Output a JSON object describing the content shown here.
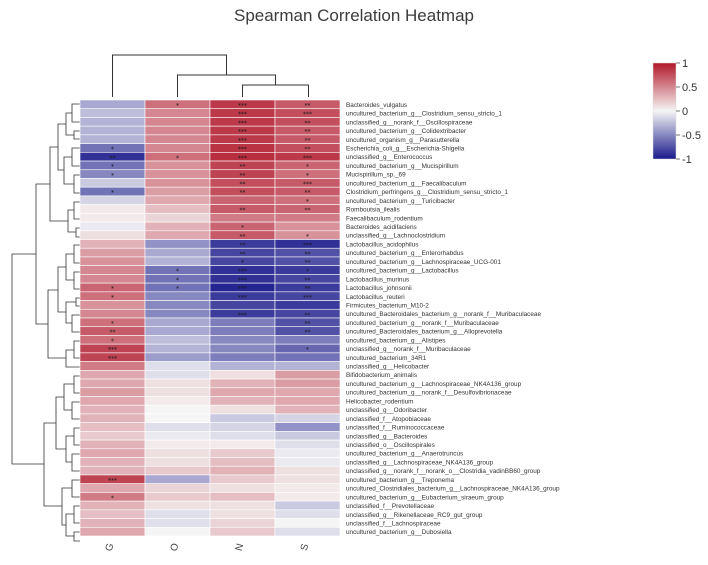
{
  "chart_data": {
    "type": "heatmap",
    "title": "Spearman Correlation Heatmap",
    "columns": [
      "G",
      "O",
      "N",
      "S"
    ],
    "rows": [
      "Bacteroides_vulgatus",
      "uncultured_bacterium_g__Clostridium_sensu_stricto_1",
      "unclassified_g__norank_f__Oscillospiraceae",
      "uncultured_bacterium_g__Colidextribacter",
      "uncultured_organism_g__Parasutterella",
      "Escherichia_coli_g__Escherichia-Shigella",
      "unclassified_g__Enterococcus",
      "uncultured_bacterium_g__Mucispirillum",
      "Mucispirillum_sp._69",
      "uncultured_bacterium_g__Faecalibaculum",
      "Clostridium_perfringens_g__Clostridium_sensu_stricto_1",
      "uncultured_bacterium_g__Turicibacter",
      "Romboutsia_ilealis",
      "Faecalibaculum_rodentium",
      "Bacteroides_acidifaciens",
      "unclassified_g__Lachnoclostridium",
      "Lactobacillus_acidophilus",
      "uncultured_bacterium_g__Enterorhabdus",
      "uncultured_bacterium_g__Lachnospiraceae_UCG-001",
      "uncultured_bacterium_g__Lactobacillus",
      "Lactobacillus_murinus",
      "Lactobacillus_johnsonii",
      "Lactobacillus_reuteri",
      "Firmicutes_bacterium_M10-2",
      "uncultured_Bacteroidales_bacterium_g__norank_f__Muribaculaceae",
      "uncultured_bacterium_g__norank_f__Muribaculaceae",
      "uncultured_Bacteroidales_bacterium_g__Alloprevotella",
      "uncultured_bacterium_g__Alistipes",
      "unclassified_g__norank_f__Muribaculaceae",
      "uncultured_bacterium_34R1",
      "unclassified_g__Helicobacter",
      "Bifidobacterium_animalis",
      "uncultured_bacterium_g__Lachnospiraceae_NK4A136_group",
      "uncultured_bacterium_g__norank_f__Desulfovibrionaceae",
      "Helicobacter_rodentium",
      "unclassified_g__Odoribacter",
      "unclassified_f__Atopobiaceae",
      "unclassified_f__Ruminococcaceae",
      "unclassified_g__Bacteroides",
      "unclassified_o__Oscillospirales",
      "uncultured_bacterium_g__Anaerotruncus",
      "unclassified_g__Lachnospiraceae_NK4A136_group",
      "unclassified_g__norank_f__norank_o__Clostridia_vadinBB60_group",
      "uncultured_bacterium_g__Treponema",
      "uncultured_Clostridiales_bacterium_g__Lachnospiraceae_NK4A136_group",
      "uncultured_bacterium_g__Eubacterium_siraeum_group",
      "unclassified_f__Prevotellaceae",
      "unclassified_g__Rikenellaceae_RC9_gut_group",
      "unclassified_f__Lachnospiraceae",
      "uncultured_bacterium_g__Dubosiella"
    ],
    "values": [
      [
        -0.35,
        0.6,
        0.85,
        0.7
      ],
      [
        -0.25,
        0.5,
        0.85,
        0.75
      ],
      [
        -0.3,
        0.5,
        0.85,
        0.75
      ],
      [
        -0.3,
        0.5,
        0.85,
        0.7
      ],
      [
        -0.3,
        0.5,
        0.85,
        0.7
      ],
      [
        -0.6,
        0.5,
        0.88,
        0.75
      ],
      [
        -0.9,
        0.6,
        0.9,
        0.85
      ],
      [
        -0.6,
        0.45,
        0.8,
        0.65
      ],
      [
        -0.5,
        0.45,
        0.8,
        0.6
      ],
      [
        -0.2,
        0.45,
        0.75,
        0.7
      ],
      [
        -0.6,
        0.4,
        0.75,
        0.7
      ],
      [
        -0.15,
        0.35,
        0.65,
        0.6
      ],
      [
        0.05,
        0.25,
        0.7,
        0.65
      ],
      [
        0.05,
        0.15,
        0.55,
        0.55
      ],
      [
        -0.05,
        0.3,
        0.65,
        0.45
      ],
      [
        0.1,
        0.35,
        0.7,
        0.45
      ],
      [
        0.3,
        -0.45,
        -0.85,
        -0.9
      ],
      [
        0.4,
        -0.35,
        -0.8,
        -0.75
      ],
      [
        0.45,
        -0.3,
        -0.8,
        -0.75
      ],
      [
        0.5,
        -0.6,
        -0.9,
        -0.85
      ],
      [
        0.5,
        -0.6,
        -0.9,
        -0.8
      ],
      [
        0.65,
        -0.6,
        -0.95,
        -0.85
      ],
      [
        0.6,
        -0.5,
        -0.85,
        -0.8
      ],
      [
        0.45,
        -0.5,
        -0.8,
        -0.85
      ],
      [
        0.5,
        -0.5,
        -0.85,
        -0.8
      ],
      [
        0.6,
        -0.35,
        -0.55,
        -0.75
      ],
      [
        0.7,
        -0.35,
        -0.55,
        -0.75
      ],
      [
        0.6,
        -0.25,
        -0.5,
        -0.55
      ],
      [
        0.8,
        -0.3,
        -0.5,
        -0.65
      ],
      [
        0.8,
        -0.4,
        -0.55,
        -0.6
      ],
      [
        0.55,
        -0.1,
        -0.3,
        -0.3
      ],
      [
        0.35,
        -0.1,
        0.1,
        0.4
      ],
      [
        0.35,
        0.1,
        0.3,
        0.4
      ],
      [
        0.4,
        0.1,
        0.35,
        0.35
      ],
      [
        0.35,
        0.05,
        0.3,
        0.35
      ],
      [
        0.3,
        0.0,
        0.1,
        0.3
      ],
      [
        0.3,
        0.0,
        -0.2,
        -0.15
      ],
      [
        0.25,
        -0.1,
        -0.15,
        -0.45
      ],
      [
        0.2,
        -0.05,
        -0.1,
        -0.2
      ],
      [
        0.3,
        0.05,
        0.05,
        -0.1
      ],
      [
        0.35,
        0.1,
        0.2,
        -0.05
      ],
      [
        0.3,
        0.1,
        0.25,
        -0.05
      ],
      [
        0.3,
        0.2,
        0.3,
        0.1
      ],
      [
        0.8,
        -0.35,
        0.2,
        0.1
      ],
      [
        0.35,
        0.15,
        0.1,
        0.05
      ],
      [
        0.55,
        0.2,
        0.25,
        0.05
      ],
      [
        0.3,
        0.1,
        0.1,
        -0.2
      ],
      [
        0.25,
        -0.1,
        0.1,
        -0.1
      ],
      [
        0.3,
        -0.1,
        0.15,
        0.0
      ],
      [
        0.35,
        0.0,
        0.2,
        -0.1
      ]
    ],
    "significance": [
      [
        "",
        "*",
        "***",
        "**"
      ],
      [
        "",
        "",
        "***",
        "***"
      ],
      [
        "",
        "",
        "***",
        "**"
      ],
      [
        "",
        "",
        "***",
        "**"
      ],
      [
        "",
        "",
        "***",
        "**"
      ],
      [
        "*",
        "",
        "***",
        "**"
      ],
      [
        "**",
        "*",
        "***",
        "***"
      ],
      [
        "*",
        "",
        "**",
        "*"
      ],
      [
        "*",
        "",
        "**",
        "*"
      ],
      [
        "",
        "",
        "**",
        "***"
      ],
      [
        "*",
        "",
        "**",
        "**"
      ],
      [
        "",
        "",
        "",
        "*"
      ],
      [
        "",
        "",
        "**",
        "**"
      ],
      [
        "",
        "",
        "",
        ""
      ],
      [
        "",
        "",
        "*",
        ""
      ],
      [
        "",
        "",
        "**",
        "*"
      ],
      [
        "",
        "",
        "**",
        "***"
      ],
      [
        "",
        "",
        "**",
        "**"
      ],
      [
        "",
        "",
        "*",
        "**"
      ],
      [
        "",
        "*",
        "***",
        "*"
      ],
      [
        "",
        "*",
        "***",
        "**"
      ],
      [
        "*",
        "*",
        "***",
        "**"
      ],
      [
        "*",
        "",
        "***",
        "***"
      ],
      [
        "",
        "",
        "",
        ""
      ],
      [
        "",
        "",
        "***",
        "**"
      ],
      [
        "*",
        "",
        "",
        "**"
      ],
      [
        "**",
        "",
        "",
        "**"
      ],
      [
        "*",
        "",
        "",
        ""
      ],
      [
        "***",
        "",
        "",
        "*"
      ],
      [
        "***",
        "",
        "",
        ""
      ],
      [
        "",
        "",
        "",
        ""
      ],
      [
        "",
        "",
        "",
        ""
      ],
      [
        "",
        "",
        "",
        ""
      ],
      [
        "",
        "",
        "",
        ""
      ],
      [
        "",
        "",
        "",
        ""
      ],
      [
        "",
        "",
        "",
        ""
      ],
      [
        "",
        "",
        "",
        ""
      ],
      [
        "",
        "",
        "",
        ""
      ],
      [
        "",
        "",
        "",
        ""
      ],
      [
        "",
        "",
        "",
        ""
      ],
      [
        "",
        "",
        "",
        ""
      ],
      [
        "",
        "",
        "",
        ""
      ],
      [
        "",
        "",
        "",
        ""
      ],
      [
        "***",
        "",
        "",
        ""
      ],
      [
        "",
        "",
        "",
        ""
      ],
      [
        "*",
        "",
        "",
        ""
      ],
      [
        "",
        "",
        "",
        ""
      ],
      [
        "",
        "",
        "",
        ""
      ],
      [
        "",
        "",
        "",
        ""
      ],
      [
        "",
        "",
        "",
        ""
      ]
    ],
    "color_scale": {
      "min": -1,
      "max": 1,
      "low_color": "#1a1a8c",
      "mid_color": "#f5f5f5",
      "high_color": "#b2182b"
    },
    "legend": {
      "ticks": [
        "1",
        "0.5",
        "0",
        "-0.5",
        "-1"
      ],
      "tick_values": [
        1,
        0.5,
        0,
        -0.5,
        -1
      ],
      "position": "top-right"
    }
  }
}
